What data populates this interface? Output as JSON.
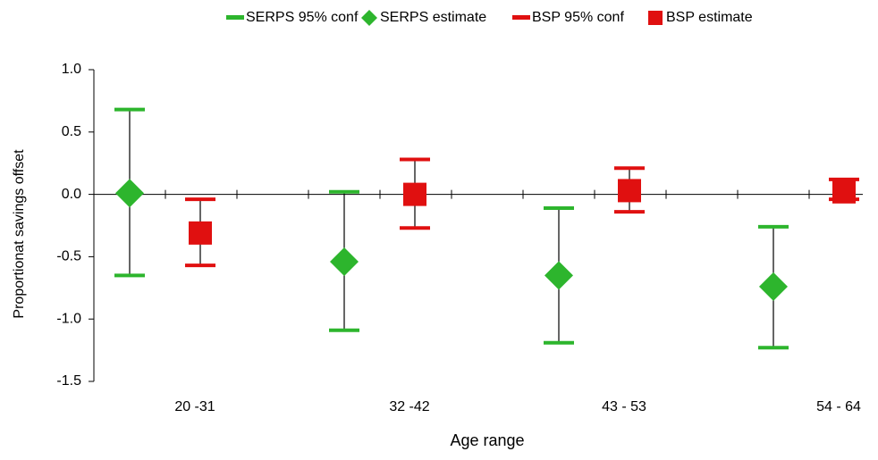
{
  "chart_data": {
    "type": "errorbar",
    "ylabel": "Proportionat savings offset",
    "xlabel": "Age range",
    "categories": [
      "20 -31",
      "32 -42",
      "43 - 53",
      "54 - 64"
    ],
    "ylim": [
      -1.5,
      1.0
    ],
    "yticks": [
      {
        "value": 1.0,
        "label": "1.0"
      },
      0.5,
      {
        "value": 0,
        "label": "0.0"
      },
      -0.5,
      {
        "value": -1.0,
        "label": "-1.0"
      },
      -1.5
    ],
    "series": [
      {
        "name": "SERPS 95% conf",
        "color": "#2db52d",
        "low": [
          -0.65,
          -1.09,
          -1.19,
          -1.23
        ],
        "high": [
          0.68,
          0.02,
          -0.11,
          -0.26
        ]
      },
      {
        "name": "SERPS estimate",
        "color": "#2db52d",
        "marker": "diamond",
        "values": [
          0.01,
          -0.54,
          -0.65,
          -0.74
        ]
      },
      {
        "name": "BSP 95% conf",
        "color": "#e01010",
        "low": [
          -0.57,
          -0.27,
          -0.14,
          -0.04
        ],
        "high": [
          -0.04,
          0.28,
          0.21,
          0.12
        ]
      },
      {
        "name": "BSP estimate",
        "color": "#e01010",
        "marker": "square",
        "values": [
          -0.31,
          0.0,
          0.03,
          0.02
        ]
      }
    ]
  }
}
